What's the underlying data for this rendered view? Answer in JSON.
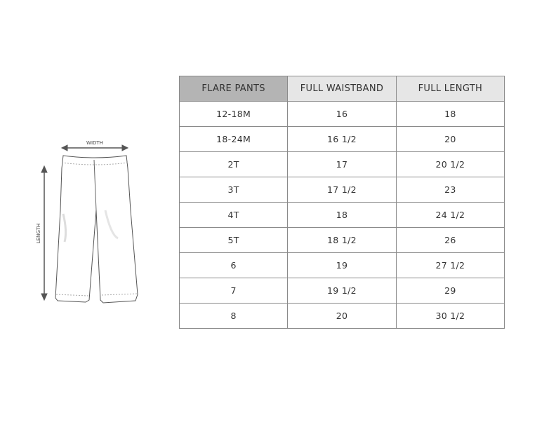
{
  "diagram": {
    "width_label": "WIDTH",
    "length_label": "LENGTH"
  },
  "table": {
    "headers": [
      "FLARE PANTS",
      "FULL WAISTBAND",
      "FULL LENGTH"
    ],
    "rows": [
      [
        "12-18M",
        "16",
        "18"
      ],
      [
        "18-24M",
        "16 1/2",
        "20"
      ],
      [
        "2T",
        "17",
        "20 1/2"
      ],
      [
        "3T",
        "17 1/2",
        "23"
      ],
      [
        "4T",
        "18",
        "24 1/2"
      ],
      [
        "5T",
        "18 1/2",
        "26"
      ],
      [
        "6",
        "19",
        "27 1/2"
      ],
      [
        "7",
        "19 1/2",
        "29"
      ],
      [
        "8",
        "20",
        "30 1/2"
      ]
    ]
  }
}
